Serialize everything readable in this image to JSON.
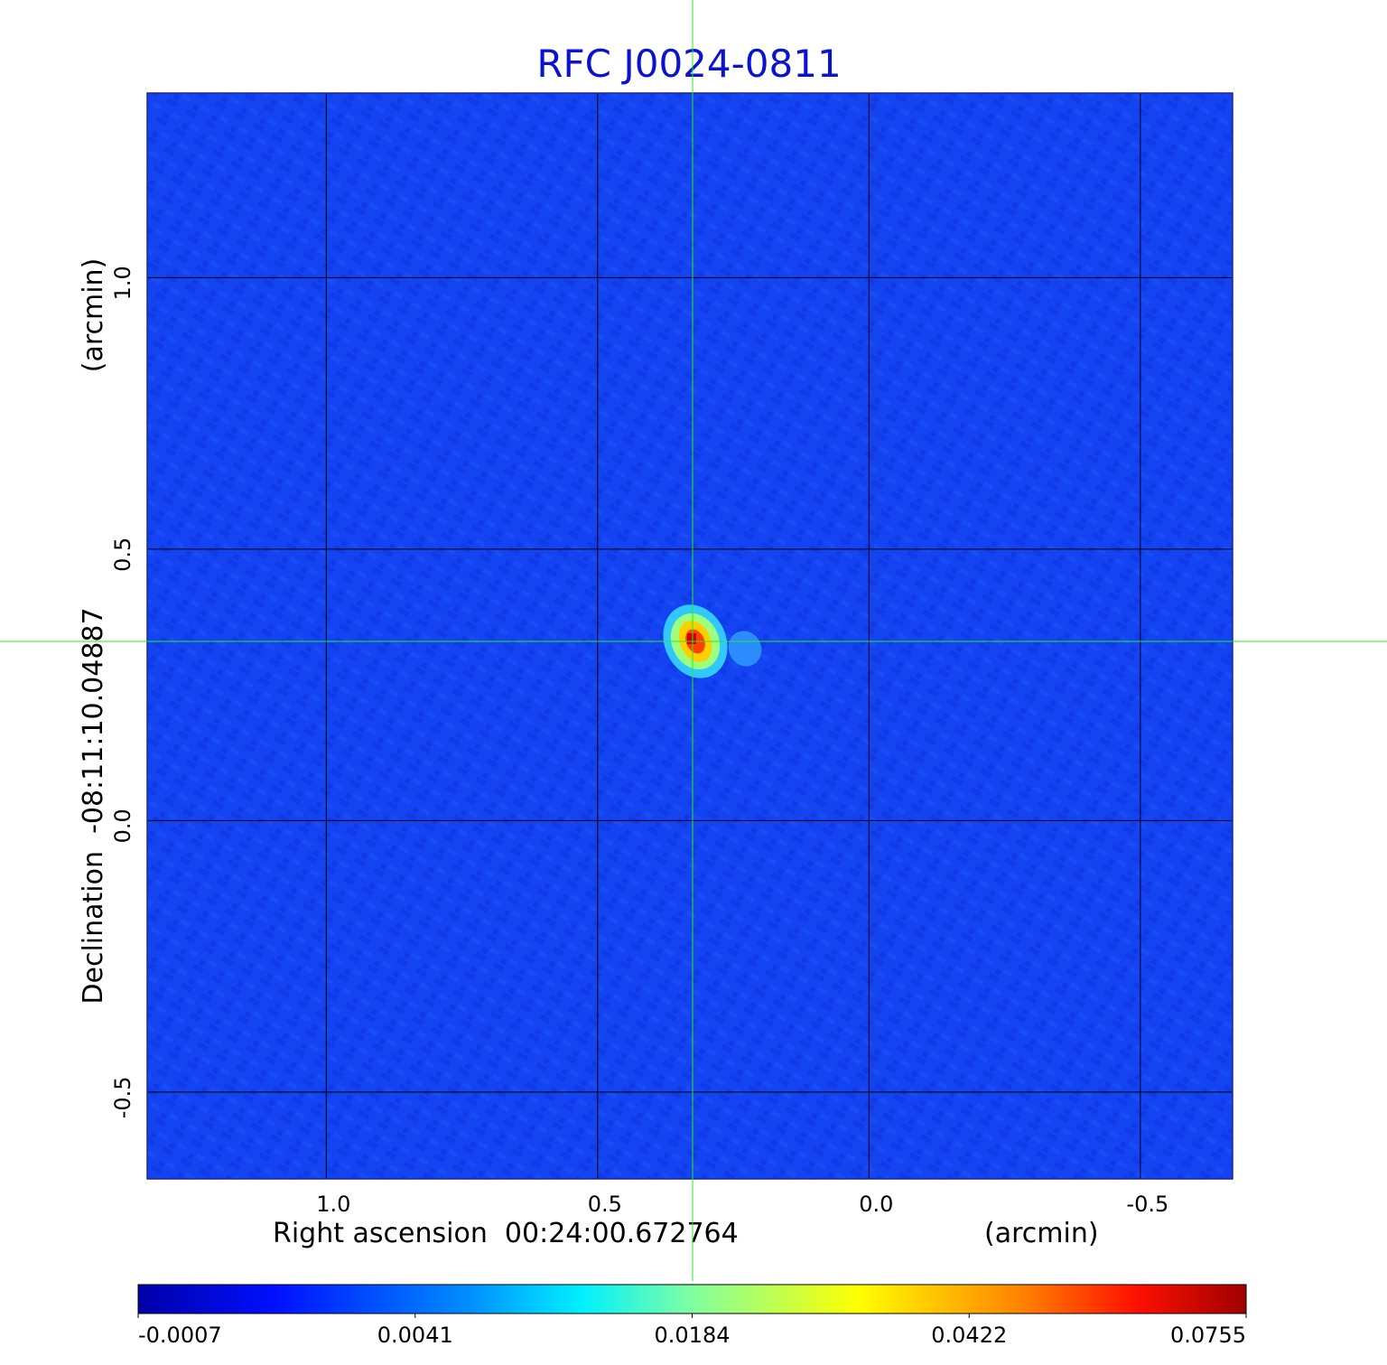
{
  "chart_data": {
    "type": "heatmap",
    "title": "RFC J0024-0811",
    "title_color": "#0a14d0",
    "xlabel": "Right ascension  00:24:00.672764",
    "xunit": "(arcmin)",
    "ylabel": "Declination  -08:11:10.04887",
    "yunit": "(arcmin)",
    "xlim": [
      1.33,
      -0.67
    ],
    "ylim": [
      -0.66,
      1.34
    ],
    "x_ticks": [
      1.0,
      0.5,
      0.0,
      -0.5
    ],
    "x_tick_labels": [
      "1.0",
      "0.5",
      "0.0",
      "-0.5"
    ],
    "y_ticks": [
      1.0,
      0.5,
      0.0,
      -0.5
    ],
    "y_tick_labels": [
      "1.0",
      "0.5",
      "0.0",
      "-0.5"
    ],
    "grid": true,
    "crosshair": {
      "x": 0.325,
      "y": 0.33,
      "color": "#22ee22"
    },
    "source": {
      "x": 0.32,
      "y": 0.33,
      "peak": 0.0755
    },
    "colorbar": {
      "ticks": [
        "-0.0007",
        "0.0041",
        "0.0184",
        "0.0422",
        "0.0755"
      ],
      "colormap": "jet"
    },
    "background_color": "#1040f0"
  }
}
